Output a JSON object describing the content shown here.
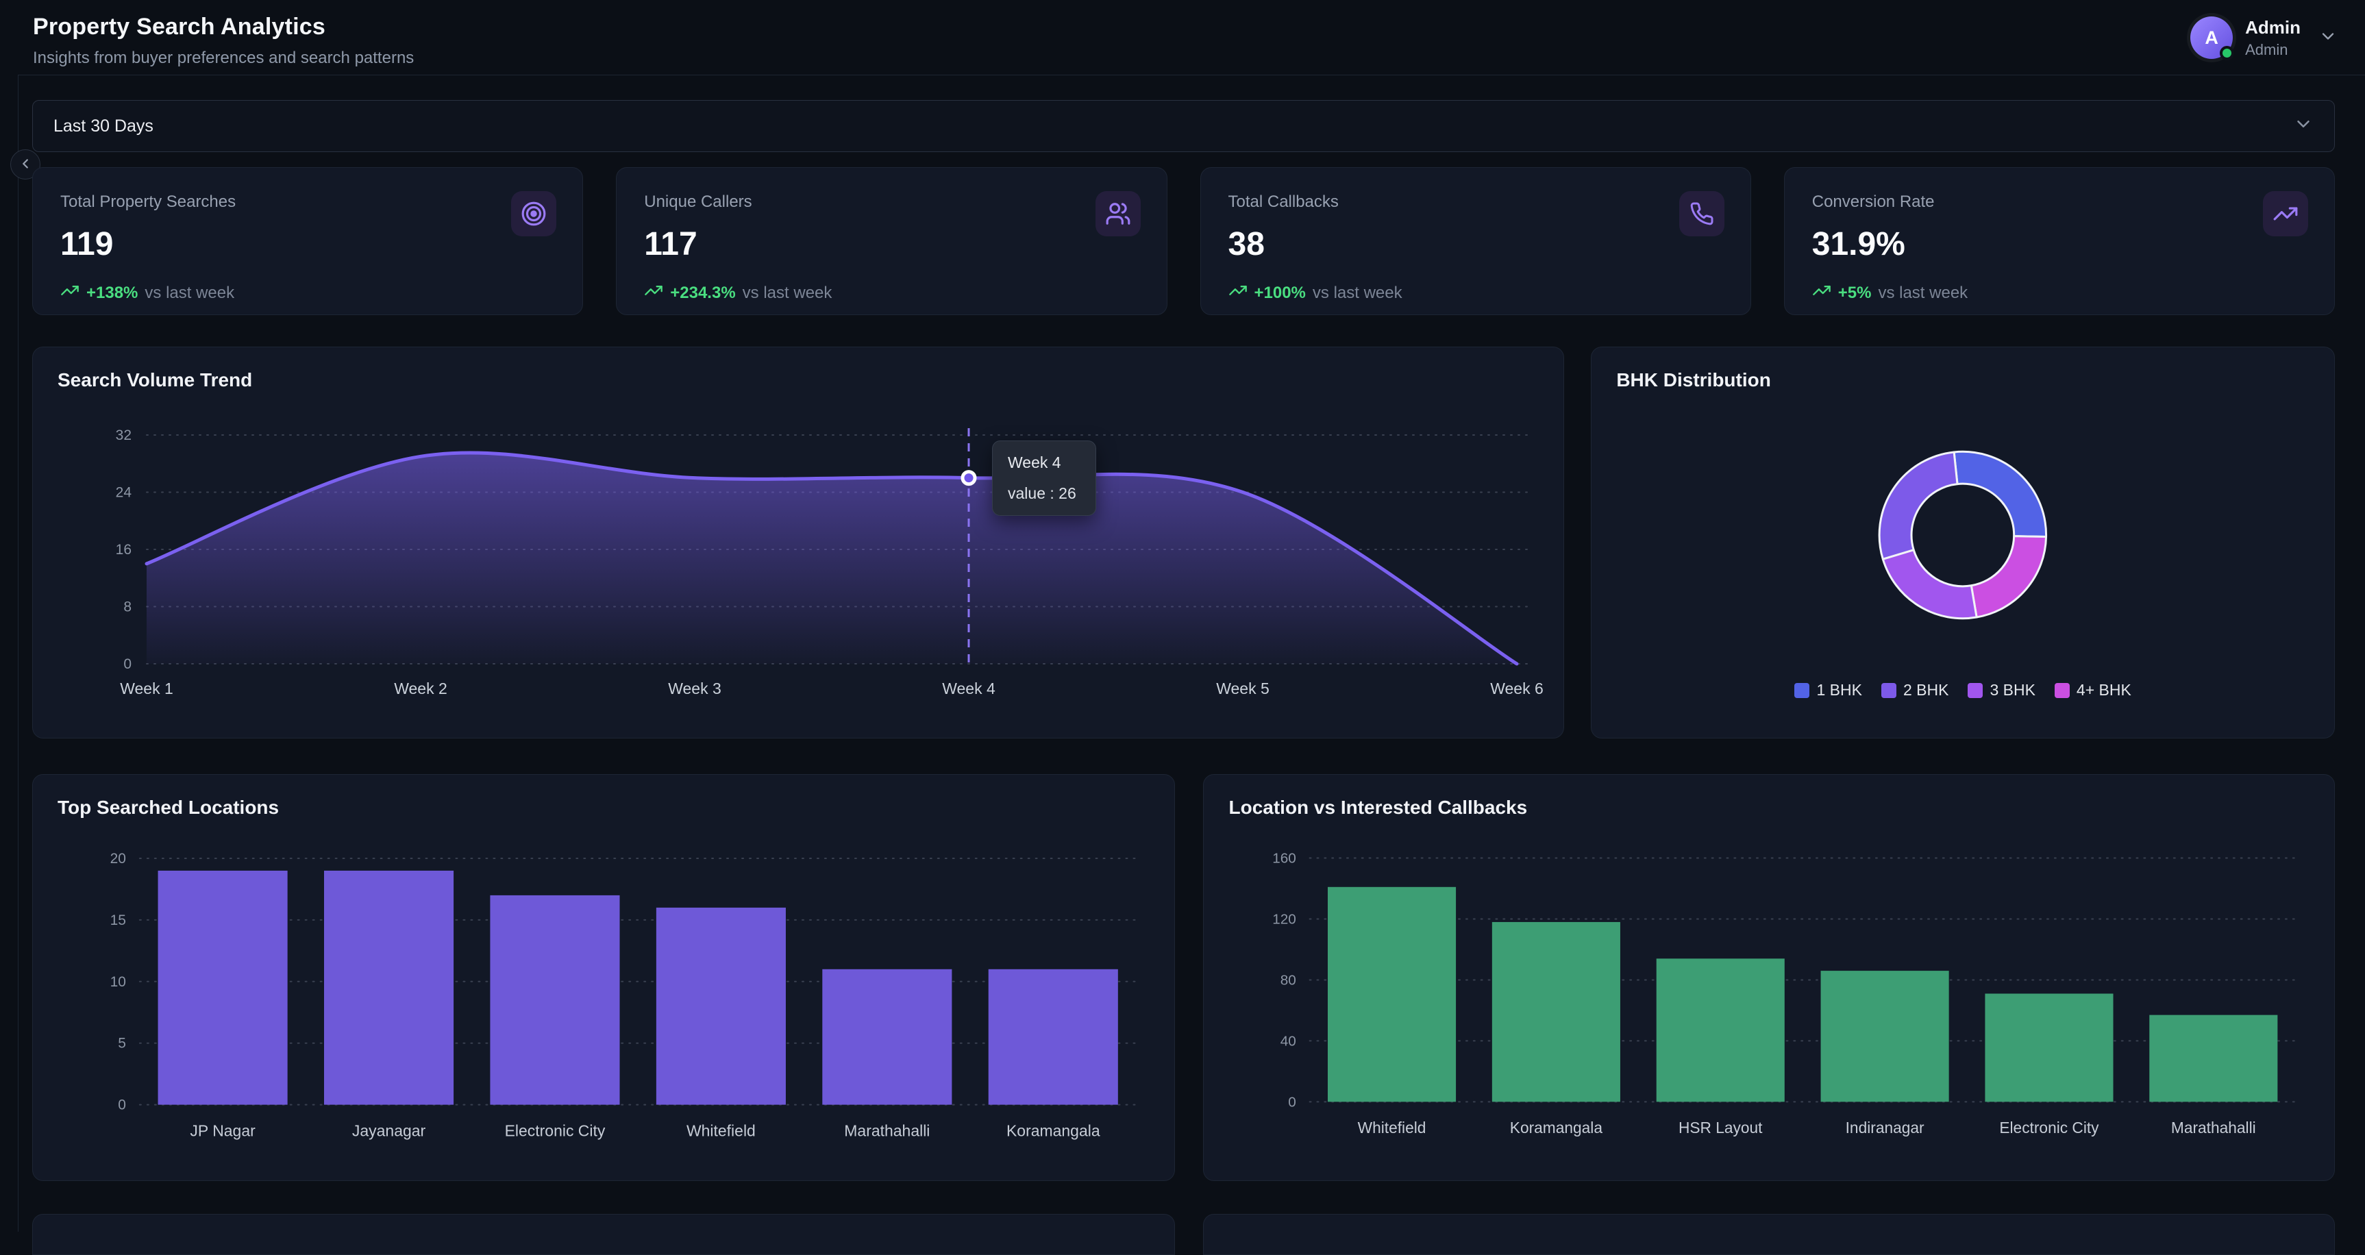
{
  "header": {
    "title": "Property Search Analytics",
    "subtitle": "Insights from buyer preferences and search patterns",
    "user": {
      "initial": "A",
      "name": "Admin",
      "role": "Admin"
    }
  },
  "filter": {
    "value": "Last 30 Days"
  },
  "stats": [
    {
      "label": "Total Property Searches",
      "value": "119",
      "change": "+138%",
      "change_note": "vs last week",
      "icon": "target-icon"
    },
    {
      "label": "Unique Callers",
      "value": "117",
      "change": "+234.3%",
      "change_note": "vs last week",
      "icon": "users-icon"
    },
    {
      "label": "Total Callbacks",
      "value": "38",
      "change": "+100%",
      "change_note": "vs last week",
      "icon": "phone-icon"
    },
    {
      "label": "Conversion Rate",
      "value": "31.9%",
      "change": "+5%",
      "change_note": "vs last week",
      "icon": "trending-up-icon"
    }
  ],
  "chart_data": [
    {
      "id": "search-volume-trend",
      "type": "area",
      "title": "Search Volume Trend",
      "x": [
        "Week 1",
        "Week 2",
        "Week 3",
        "Week 4",
        "Week 5",
        "Week 6"
      ],
      "values": [
        14,
        29,
        26,
        26,
        24,
        0
      ],
      "ylim": [
        0,
        32
      ],
      "yticks": [
        0,
        8,
        16,
        24,
        32
      ],
      "grid": "dotted",
      "line_color": "#7b61f0",
      "tooltip": {
        "point_index": 3,
        "label": "Week 4",
        "value_text": "value : 26"
      }
    },
    {
      "id": "bhk-distribution",
      "type": "pie",
      "title": "BHK Distribution",
      "donut": true,
      "slices": [
        {
          "label": "1 BHK",
          "value": 27,
          "color": "#5263e6"
        },
        {
          "label": "2 BHK",
          "value": 28,
          "color": "#7d5ae9"
        },
        {
          "label": "3 BHK",
          "value": 23,
          "color": "#a156ee"
        },
        {
          "label": "4+ BHK",
          "value": 22,
          "color": "#cb4fe2"
        }
      ],
      "start_angle_deg": -6,
      "draw_order": [
        0,
        3,
        2,
        1
      ],
      "legend_position": "bottom"
    },
    {
      "id": "top-searched-locations",
      "type": "bar",
      "title": "Top Searched Locations",
      "categories": [
        "JP Nagar",
        "Jayanagar",
        "Electronic City",
        "Whitefield",
        "Marathahalli",
        "Koramangala"
      ],
      "values": [
        19,
        19,
        17,
        16,
        11,
        11
      ],
      "ylim": [
        0,
        20
      ],
      "yticks": [
        0,
        5,
        10,
        15,
        20
      ],
      "grid": "dotted",
      "bar_color": "#6e59d8"
    },
    {
      "id": "location-vs-interested-callbacks",
      "type": "bar",
      "title": "Location vs Interested Callbacks",
      "categories": [
        "Whitefield",
        "Koramangala",
        "HSR Layout",
        "Indiranagar",
        "Electronic City",
        "Marathahalli"
      ],
      "values": [
        141,
        118,
        94,
        86,
        71,
        57
      ],
      "ylim": [
        0,
        160
      ],
      "yticks": [
        0,
        40,
        80,
        120,
        160
      ],
      "grid": "dotted",
      "bar_color": "#3d9e74"
    }
  ],
  "colors": {
    "accent_purple": "#7b61f0",
    "accent_green": "#4ade80",
    "bar_purple": "#6e59d8",
    "bar_green": "#3d9e74",
    "status_online": "#27c768"
  }
}
